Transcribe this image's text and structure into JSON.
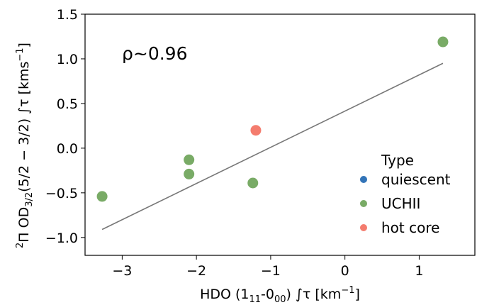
{
  "chart_data": {
    "type": "scatter",
    "xlabel": {
      "prefix": "HDO (1",
      "sub1": "11",
      "mid": "-0",
      "sub2": "00",
      "suffix": ") ∫τ [km",
      "sup": "−1",
      "end": "]"
    },
    "ylabel": {
      "sup_pre": "2",
      "prefix": "Π OD",
      "sub": "3/2",
      "mid": "(5/2 − 3/2) ∫τ [kms",
      "sup": "−1",
      "end": "]"
    },
    "xlim": [
      -3.5,
      1.75
    ],
    "ylim": [
      -1.2,
      1.5
    ],
    "xticks": [
      -3,
      -2,
      -1,
      0,
      1
    ],
    "xtick_labels": [
      "−3",
      "−2",
      "−1",
      "0",
      "1"
    ],
    "yticks": [
      -1.0,
      -0.5,
      0.0,
      0.5,
      1.0,
      1.5
    ],
    "ytick_labels": [
      "−1.0",
      "−0.5",
      "0.0",
      "0.5",
      "1.0",
      "1.5"
    ],
    "annotation": "ρ~0.96",
    "series": [
      {
        "name": "quiescent",
        "color": "#3274b8",
        "points": []
      },
      {
        "name": "UCHII",
        "color": "#79ab66",
        "points": [
          {
            "x": -3.27,
            "y": -0.54
          },
          {
            "x": -2.1,
            "y": -0.13
          },
          {
            "x": -2.1,
            "y": -0.29
          },
          {
            "x": -1.24,
            "y": -0.39
          },
          {
            "x": 1.32,
            "y": 1.19
          }
        ]
      },
      {
        "name": "hot core",
        "color": "#f47c6e",
        "points": [
          {
            "x": -1.2,
            "y": 0.2
          }
        ]
      }
    ],
    "fit_line": {
      "x": [
        -3.27,
        1.32
      ],
      "y": [
        -0.91,
        0.95
      ],
      "color": "#777777"
    },
    "legend": {
      "title": "Type",
      "placement": "lower-right"
    }
  }
}
